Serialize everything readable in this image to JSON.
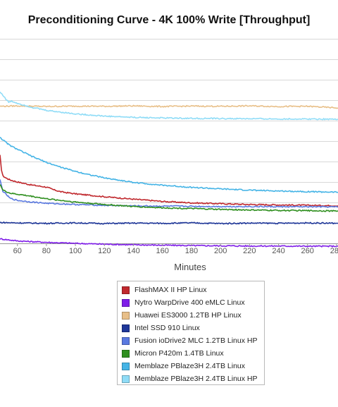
{
  "chart_data": {
    "type": "line",
    "title": "Preconditioning Curve - 4K 100% Write [Throughput]",
    "xlabel": "Minutes",
    "ylabel": "",
    "x_ticks": [
      60,
      80,
      100,
      120,
      140,
      160,
      180,
      200,
      220,
      240,
      260,
      280
    ],
    "xlim": [
      48,
      281
    ],
    "ylim": [
      0,
      10
    ],
    "grid": true,
    "legend_position": "bottom",
    "series": [
      {
        "name": "FlashMAX II HP Linux",
        "color": "#c0282d",
        "x": [
          48,
          49,
          50,
          52,
          55,
          60,
          70,
          80,
          85,
          90,
          100,
          120,
          140,
          160,
          180,
          200,
          220,
          240,
          260,
          281
        ],
        "y": [
          4.3,
          3.6,
          3.3,
          3.2,
          3.1,
          3.0,
          2.85,
          2.75,
          2.62,
          2.52,
          2.42,
          2.28,
          2.16,
          2.05,
          1.98,
          1.94,
          1.9,
          1.88,
          1.86,
          1.84
        ]
      },
      {
        "name": "Nytro WarpDrive 400 eMLC Linux",
        "color": "#7f1ee8",
        "x": [
          48,
          60,
          80,
          100,
          120,
          140,
          160,
          180,
          200,
          220,
          240,
          260,
          281
        ],
        "y": [
          0.22,
          0.12,
          0.05,
          0.0,
          -0.04,
          -0.07,
          -0.09,
          -0.11,
          -0.12,
          -0.13,
          -0.13,
          -0.14,
          -0.14
        ]
      },
      {
        "name": "Huawei ES3000 1.2TB HP Linux",
        "color": "#e8bf88",
        "x": [
          48,
          60,
          80,
          100,
          120,
          140,
          160,
          180,
          200,
          220,
          240,
          260,
          281
        ],
        "y": [
          6.7,
          6.72,
          6.69,
          6.71,
          6.7,
          6.72,
          6.69,
          6.71,
          6.7,
          6.72,
          6.69,
          6.7,
          6.62
        ]
      },
      {
        "name": "Intel SSD 910 Linux",
        "color": "#1f3799",
        "x": [
          48,
          60,
          80,
          100,
          120,
          140,
          160,
          180,
          200,
          220,
          240,
          260,
          281
        ],
        "y": [
          1.02,
          1.0,
          0.98,
          1.0,
          0.97,
          0.99,
          0.98,
          1.0,
          0.97,
          0.99,
          0.98,
          1.0,
          0.98
        ]
      },
      {
        "name": "Fusion ioDrive2 MLC 1.2TB Linux HP",
        "color": "#5a79e0",
        "x": [
          48,
          50,
          55,
          60,
          70,
          80,
          100,
          120,
          140,
          160,
          180,
          200,
          220,
          240,
          260,
          281
        ],
        "y": [
          3.1,
          2.55,
          2.2,
          2.1,
          2.02,
          1.96,
          1.9,
          1.86,
          1.83,
          1.82,
          1.81,
          1.8,
          1.8,
          1.79,
          1.79,
          1.78
        ]
      },
      {
        "name": "Micron P420m 1.4TB Linux",
        "color": "#2f8f1f",
        "x": [
          48,
          50,
          55,
          60,
          70,
          80,
          100,
          120,
          140,
          160,
          180,
          200,
          220,
          240,
          260,
          281
        ],
        "y": [
          2.9,
          2.6,
          2.45,
          2.4,
          2.3,
          2.18,
          2.02,
          1.9,
          1.8,
          1.74,
          1.7,
          1.66,
          1.63,
          1.61,
          1.6,
          1.58
        ]
      },
      {
        "name": "Memblaze PBlaze3H 2.4TB Linux",
        "color": "#45b4e6",
        "x": [
          48,
          50,
          55,
          60,
          70,
          80,
          90,
          100,
          110,
          120,
          140,
          160,
          180,
          200,
          220,
          240,
          260,
          281
        ],
        "y": [
          5.2,
          5.05,
          4.78,
          4.6,
          4.25,
          3.96,
          3.72,
          3.52,
          3.35,
          3.2,
          2.98,
          2.84,
          2.74,
          2.66,
          2.6,
          2.56,
          2.53,
          2.5
        ]
      },
      {
        "name": "Memblaze PBlaze3H 2.4TB Linux HP",
        "color": "#8fdcf7",
        "x": [
          48,
          50,
          52,
          54,
          56,
          60,
          70,
          80,
          100,
          120,
          140,
          160,
          180,
          200,
          220,
          240,
          260,
          281
        ],
        "y": [
          7.4,
          7.25,
          7.05,
          6.9,
          6.95,
          6.85,
          6.65,
          6.5,
          6.33,
          6.22,
          6.16,
          6.13,
          6.11,
          6.1,
          6.09,
          6.08,
          6.08,
          6.07
        ]
      }
    ]
  }
}
